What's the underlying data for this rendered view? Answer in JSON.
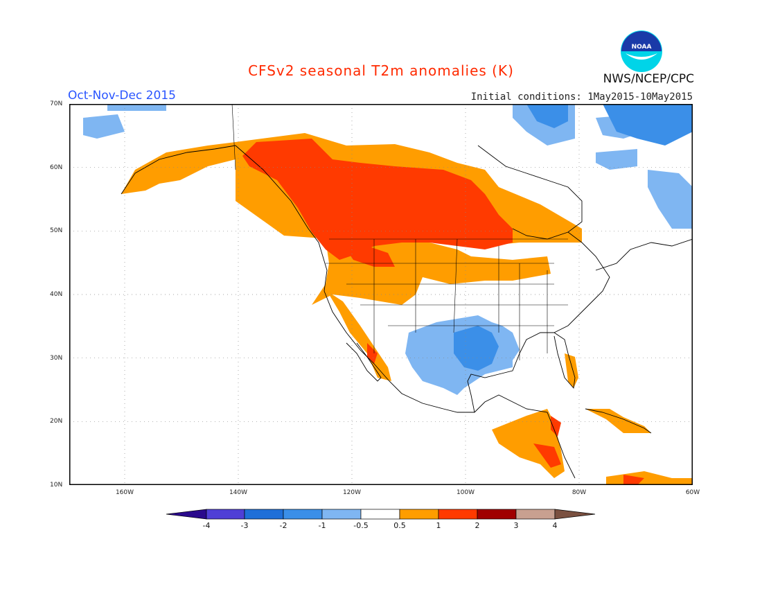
{
  "title": "CFSv2 seasonal T2m anomalies (K)",
  "season": "Oct-Nov-Dec 2015",
  "initial_conditions": "Initial conditions: 1May2015-10May2015",
  "agency": "NWS/NCEP/CPC",
  "logo_text": "NOAA",
  "lat_labels": [
    "70N",
    "60N",
    "50N",
    "40N",
    "30N",
    "20N",
    "10N"
  ],
  "lon_labels": [
    "160W",
    "140W",
    "120W",
    "100W",
    "80W",
    "60W"
  ],
  "colorbar_ticks": [
    "-4",
    "-3",
    "-2",
    "-1",
    "-0.5",
    "0.5",
    "1",
    "2",
    "3",
    "4"
  ],
  "colors": {
    "cold4": "#2a0a8c",
    "cold3": "#4f3fd6",
    "cold2": "#1f6fd8",
    "cold1": "#3b8fe8",
    "cold05": "#7fb6f2",
    "neutral": "#ffffff",
    "warm05": "#ff9d00",
    "warm1": "#ff3a00",
    "warm2": "#a00000",
    "warm3": "#c8a090",
    "warm4": "#7a5040",
    "title": "#ff2a00",
    "season": "#2a55ff"
  }
}
